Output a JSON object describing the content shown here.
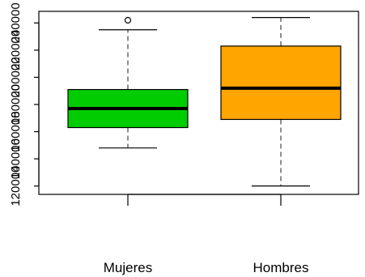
{
  "chart_data": {
    "type": "boxplot",
    "title": "",
    "xlabel": "",
    "ylabel": "",
    "y_tick_values": [
      120000,
      140000,
      160000,
      180000,
      200000,
      220000,
      240000
    ],
    "y_tick_labels": [
      "120000",
      "140000",
      "160000",
      "180000",
      "200000",
      "220000",
      "240000"
    ],
    "ylim": [
      118000,
      242000
    ],
    "categories": [
      "Mujeres",
      "Hombres"
    ],
    "boxes": [
      {
        "category": "Mujeres",
        "color": "#00cc00",
        "whisker_low": 148000,
        "q1": 163000,
        "median": 177000,
        "q3": 191000,
        "whisker_high": 235000,
        "outliers": [
          242000
        ]
      },
      {
        "category": "Hombres",
        "color": "#ffa500",
        "whisker_low": 120000,
        "q1": 169000,
        "median": 192000,
        "q3": 223000,
        "whisker_high": 244000,
        "outliers": []
      }
    ],
    "grid": false,
    "legend": false
  }
}
